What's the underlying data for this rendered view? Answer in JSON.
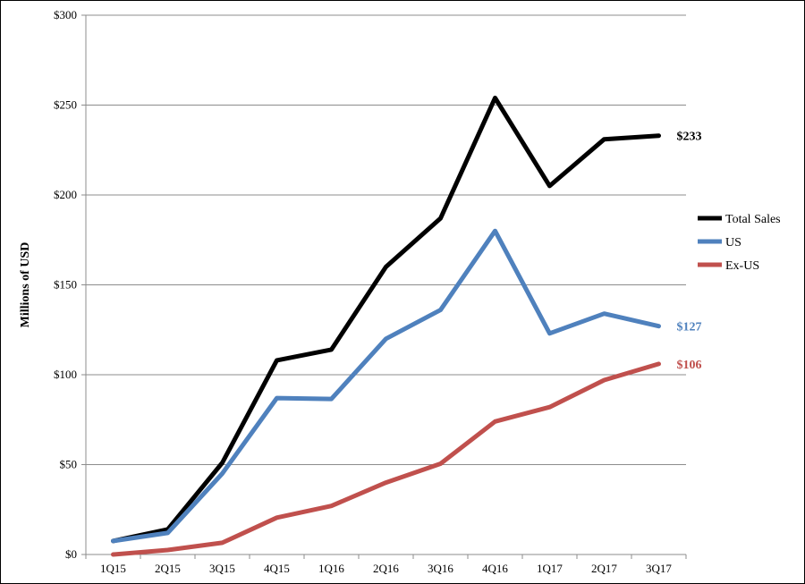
{
  "chart_data": {
    "type": "line",
    "ylabel": "Millions of USD",
    "ylim": [
      0,
      300
    ],
    "y_ticks": [
      0,
      50,
      100,
      150,
      200,
      250,
      300
    ],
    "y_tick_labels": [
      "$0",
      "$50",
      "$100",
      "$150",
      "$200",
      "$250",
      "$300"
    ],
    "categories": [
      "1Q15",
      "2Q15",
      "3Q15",
      "4Q15",
      "1Q16",
      "2Q16",
      "3Q16",
      "4Q16",
      "1Q17",
      "2Q17",
      "3Q17"
    ],
    "grid": "horizontal",
    "legend_position": "right",
    "series": [
      {
        "name": "Total Sales",
        "color": "#000000",
        "values": [
          7.5,
          14,
          51,
          108,
          114,
          160,
          187,
          254,
          205,
          231,
          233
        ],
        "end_label": "$233"
      },
      {
        "name": "US",
        "color": "#4f81bd",
        "values": [
          7.5,
          12,
          45,
          87,
          86.5,
          120,
          136,
          180,
          123,
          134,
          127
        ],
        "end_label": "$127"
      },
      {
        "name": "Ex-US",
        "color": "#c0504d",
        "values": [
          0,
          2.5,
          6.5,
          20.5,
          27,
          40,
          50.5,
          74,
          82,
          97,
          106
        ],
        "end_label": "$106"
      }
    ]
  }
}
